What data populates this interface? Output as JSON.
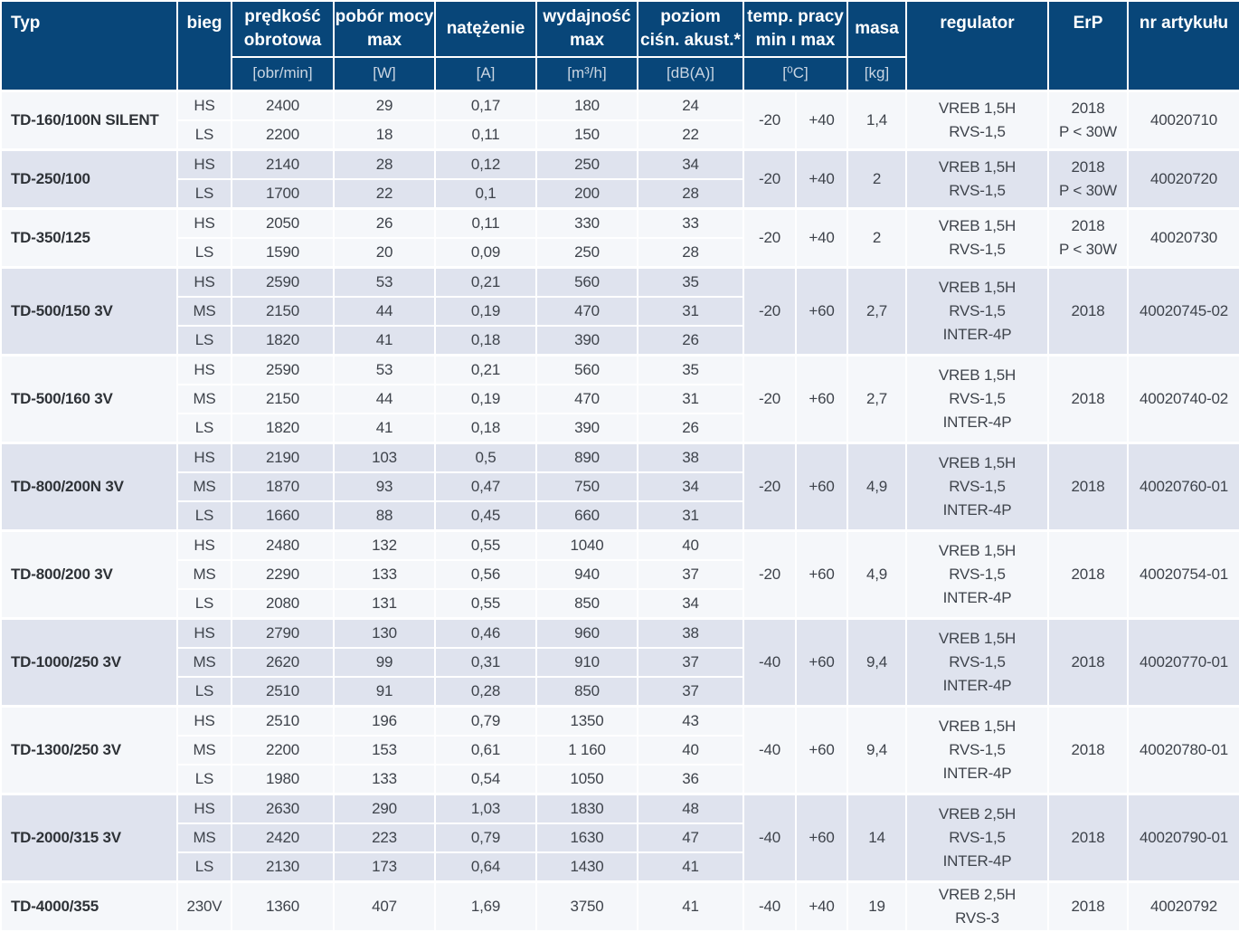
{
  "colors": {
    "header_bg": "#084679",
    "header_text": "#ffffff",
    "header_unit_text": "#c9d5e2",
    "row_light": "#f5f7fa",
    "row_dark": "#dfe3ee",
    "border": "#ffffff",
    "body_text": "#3e434b"
  },
  "header": {
    "typ_label": "Typ",
    "bieg_label": "bieg",
    "speed": {
      "label": "prędkość\nobrotowa",
      "unit": "[obr/min]"
    },
    "power": {
      "label": "pobór mocy\nmax",
      "unit": "[W]"
    },
    "current": {
      "label": "natężenie",
      "unit": "[A]"
    },
    "flow": {
      "label": "wydajność\nmax",
      "unit": "[m³/h]"
    },
    "noise": {
      "label": "poziom\nciśn. akust.*",
      "unit": "[dB(A)]"
    },
    "temp": {
      "label": "temp. pracy\nmin ı max",
      "unit": "[⁰C]"
    },
    "masa": {
      "label": "masa",
      "unit": "[kg]"
    },
    "regulator_label": "regulator",
    "erp_label": "ErP",
    "artnr_label": "nr artykułu"
  },
  "groups": [
    {
      "typ": "TD-160/100N SILENT",
      "rows": [
        {
          "bieg": "HS",
          "speed": "2400",
          "power": "29",
          "current": "0,17",
          "flow": "180",
          "noise": "24"
        },
        {
          "bieg": "LS",
          "speed": "2200",
          "power": "18",
          "current": "0,11",
          "flow": "150",
          "noise": "22"
        }
      ],
      "temp_min": "-20",
      "temp_max": "+40",
      "masa": "1,4",
      "regulator": [
        "VREB 1,5H",
        "RVS-1,5"
      ],
      "erp": [
        "2018",
        "P < 30W"
      ],
      "nr": "40020710"
    },
    {
      "typ": "TD-250/100",
      "rows": [
        {
          "bieg": "HS",
          "speed": "2140",
          "power": "28",
          "current": "0,12",
          "flow": "250",
          "noise": "34"
        },
        {
          "bieg": "LS",
          "speed": "1700",
          "power": "22",
          "current": "0,1",
          "flow": "200",
          "noise": "28"
        }
      ],
      "temp_min": "-20",
      "temp_max": "+40",
      "masa": "2",
      "regulator": [
        "VREB 1,5H",
        "RVS-1,5"
      ],
      "erp": [
        "2018",
        "P < 30W"
      ],
      "nr": "40020720"
    },
    {
      "typ": "TD-350/125",
      "rows": [
        {
          "bieg": "HS",
          "speed": "2050",
          "power": "26",
          "current": "0,11",
          "flow": "330",
          "noise": "33"
        },
        {
          "bieg": "LS",
          "speed": "1590",
          "power": "20",
          "current": "0,09",
          "flow": "250",
          "noise": "28"
        }
      ],
      "temp_min": "-20",
      "temp_max": "+40",
      "masa": "2",
      "regulator": [
        "VREB 1,5H",
        "RVS-1,5"
      ],
      "erp": [
        "2018",
        "P < 30W"
      ],
      "nr": "40020730"
    },
    {
      "typ": "TD-500/150 3V",
      "rows": [
        {
          "bieg": "HS",
          "speed": "2590",
          "power": "53",
          "current": "0,21",
          "flow": "560",
          "noise": "35"
        },
        {
          "bieg": "MS",
          "speed": "2150",
          "power": "44",
          "current": "0,19",
          "flow": "470",
          "noise": "31"
        },
        {
          "bieg": "LS",
          "speed": "1820",
          "power": "41",
          "current": "0,18",
          "flow": "390",
          "noise": "26"
        }
      ],
      "temp_min": "-20",
      "temp_max": "+60",
      "masa": "2,7",
      "regulator": [
        "VREB 1,5H",
        "RVS-1,5",
        "INTER-4P"
      ],
      "erp": [
        "2018"
      ],
      "nr": "40020745-02"
    },
    {
      "typ": "TD-500/160 3V",
      "rows": [
        {
          "bieg": "HS",
          "speed": "2590",
          "power": "53",
          "current": "0,21",
          "flow": "560",
          "noise": "35"
        },
        {
          "bieg": "MS",
          "speed": "2150",
          "power": "44",
          "current": "0,19",
          "flow": "470",
          "noise": "31"
        },
        {
          "bieg": "LS",
          "speed": "1820",
          "power": "41",
          "current": "0,18",
          "flow": "390",
          "noise": "26"
        }
      ],
      "temp_min": "-20",
      "temp_max": "+60",
      "masa": "2,7",
      "regulator": [
        "VREB 1,5H",
        "RVS-1,5",
        "INTER-4P"
      ],
      "erp": [
        "2018"
      ],
      "nr": "40020740-02"
    },
    {
      "typ": "TD-800/200N 3V",
      "rows": [
        {
          "bieg": "HS",
          "speed": "2190",
          "power": "103",
          "current": "0,5",
          "flow": "890",
          "noise": "38"
        },
        {
          "bieg": "MS",
          "speed": "1870",
          "power": "93",
          "current": "0,47",
          "flow": "750",
          "noise": "34"
        },
        {
          "bieg": "LS",
          "speed": "1660",
          "power": "88",
          "current": "0,45",
          "flow": "660",
          "noise": "31"
        }
      ],
      "temp_min": "-20",
      "temp_max": "+60",
      "masa": "4,9",
      "regulator": [
        "VREB 1,5H",
        "RVS-1,5",
        "INTER-4P"
      ],
      "erp": [
        "2018"
      ],
      "nr": "40020760-01"
    },
    {
      "typ": "TD-800/200 3V",
      "rows": [
        {
          "bieg": "HS",
          "speed": "2480",
          "power": "132",
          "current": "0,55",
          "flow": "1040",
          "noise": "40"
        },
        {
          "bieg": "MS",
          "speed": "2290",
          "power": "133",
          "current": "0,56",
          "flow": "940",
          "noise": "37"
        },
        {
          "bieg": "LS",
          "speed": "2080",
          "power": "131",
          "current": "0,55",
          "flow": "850",
          "noise": "34"
        }
      ],
      "temp_min": "-20",
      "temp_max": "+60",
      "masa": "4,9",
      "regulator": [
        "VREB 1,5H",
        "RVS-1,5",
        "INTER-4P"
      ],
      "erp": [
        "2018"
      ],
      "nr": "40020754-01"
    },
    {
      "typ": "TD-1000/250 3V",
      "rows": [
        {
          "bieg": "HS",
          "speed": "2790",
          "power": "130",
          "current": "0,46",
          "flow": "960",
          "noise": "38"
        },
        {
          "bieg": "MS",
          "speed": "2620",
          "power": "99",
          "current": "0,31",
          "flow": "910",
          "noise": "37"
        },
        {
          "bieg": "LS",
          "speed": "2510",
          "power": "91",
          "current": "0,28",
          "flow": "850",
          "noise": "37"
        }
      ],
      "temp_min": "-40",
      "temp_max": "+60",
      "masa": "9,4",
      "regulator": [
        "VREB 1,5H",
        "RVS-1,5",
        "INTER-4P"
      ],
      "erp": [
        "2018"
      ],
      "nr": "40020770-01"
    },
    {
      "typ": "TD-1300/250 3V",
      "rows": [
        {
          "bieg": "HS",
          "speed": "2510",
          "power": "196",
          "current": "0,79",
          "flow": "1350",
          "noise": "43"
        },
        {
          "bieg": "MS",
          "speed": "2200",
          "power": "153",
          "current": "0,61",
          "flow": "1 160",
          "noise": "40"
        },
        {
          "bieg": "LS",
          "speed": "1980",
          "power": "133",
          "current": "0,54",
          "flow": "1050",
          "noise": "36"
        }
      ],
      "temp_min": "-40",
      "temp_max": "+60",
      "masa": "9,4",
      "regulator": [
        "VREB 1,5H",
        "RVS-1,5",
        "INTER-4P"
      ],
      "erp": [
        "2018"
      ],
      "nr": "40020780-01"
    },
    {
      "typ": "TD-2000/315 3V",
      "rows": [
        {
          "bieg": "HS",
          "speed": "2630",
          "power": "290",
          "current": "1,03",
          "flow": "1830",
          "noise": "48"
        },
        {
          "bieg": "MS",
          "speed": "2420",
          "power": "223",
          "current": "0,79",
          "flow": "1630",
          "noise": "47"
        },
        {
          "bieg": "LS",
          "speed": "2130",
          "power": "173",
          "current": "0,64",
          "flow": "1430",
          "noise": "41"
        }
      ],
      "temp_min": "-40",
      "temp_max": "+60",
      "masa": "14",
      "regulator": [
        "VREB 2,5H",
        "RVS-1,5",
        "INTER-4P"
      ],
      "erp": [
        "2018"
      ],
      "nr": "40020790-01"
    },
    {
      "typ": "TD-4000/355",
      "rows": [
        {
          "bieg": "230V",
          "speed": "1360",
          "power": "407",
          "current": "1,69",
          "flow": "3750",
          "noise": "41"
        }
      ],
      "temp_min": "-40",
      "temp_max": "+40",
      "masa": "19",
      "regulator": [
        "VREB 2,5H",
        "RVS-3"
      ],
      "erp": [
        "2018"
      ],
      "nr": "40020792"
    }
  ]
}
